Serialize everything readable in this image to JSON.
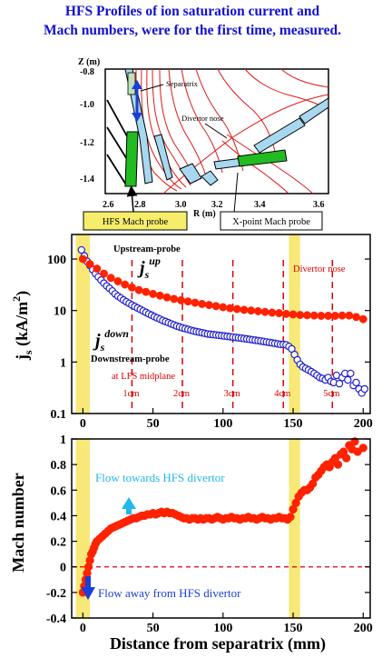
{
  "title_lines": [
    "HFS Profiles of ion saturation current and",
    "Mach numbers, were for the first time, measured."
  ],
  "colors": {
    "title": "#1010d0",
    "red": "#ff2200",
    "blue": "#2222cc",
    "yellow_band": "#f4e04a",
    "probe_green": "#22bb22",
    "wall_blue": "#a8d8f0",
    "arrow_cyan": "#22b8e8",
    "arrow_blue": "#1a3fd8",
    "divider_red": "#dd0000"
  },
  "diagram": {
    "z_axis_label": "Z (m)",
    "r_axis_label": "R (m)",
    "z_ticks": [
      "-0.8",
      "-1.0",
      "-1.2",
      "-1.4"
    ],
    "r_ticks": [
      "2.6",
      "2.8",
      "3.0",
      "3.2",
      "3.4",
      "3.6"
    ],
    "annotations": {
      "separatrix": "Separatrix",
      "divertor_nose": "Divertor nose",
      "hfs_probe": "HFS Mach probe",
      "xpoint_probe": "X-point Mach probe"
    }
  },
  "chart_data": [
    {
      "type": "scatter",
      "ylabel": "js (kA/m2)",
      "yscale": "log",
      "ylim": [
        0.1,
        300
      ],
      "xlim": [
        -8,
        205
      ],
      "y_ticks": [
        "100",
        "10",
        "1",
        "0.1"
      ],
      "x_ticks": [
        "0",
        "50",
        "100",
        "150",
        "200"
      ],
      "series": [
        {
          "name": "Upstream-probe js^up",
          "marker": "filled-red",
          "x": [
            0,
            5,
            10,
            15,
            20,
            25,
            30,
            35,
            40,
            45,
            50,
            55,
            60,
            65,
            70,
            75,
            80,
            85,
            90,
            95,
            100,
            105,
            110,
            115,
            120,
            125,
            130,
            135,
            140,
            145,
            150,
            155,
            160,
            165,
            170,
            175,
            180,
            185,
            190,
            195,
            200
          ],
          "y": [
            100,
            80,
            65,
            52,
            43,
            37,
            32,
            28,
            25,
            23,
            21,
            19.5,
            18,
            16.8,
            15.8,
            15,
            14.2,
            13.4,
            12.8,
            12.2,
            11.6,
            11.1,
            10.7,
            10.3,
            10,
            9.7,
            9.4,
            9.1,
            8.9,
            8.6,
            8.4,
            8.2,
            8.1,
            8.0,
            7.9,
            7.9,
            7.9,
            8.0,
            8.0,
            7.5,
            6.8
          ]
        },
        {
          "name": "Downstream-probe js^down",
          "marker": "open-blue",
          "x": [
            -1,
            1,
            3,
            5,
            7,
            9,
            11,
            13,
            15,
            17,
            19,
            21,
            23,
            25,
            27,
            29,
            31,
            33,
            35,
            37,
            39,
            41,
            43,
            45,
            47,
            49,
            51,
            53,
            55,
            57,
            59,
            61,
            63,
            65,
            67,
            69,
            71,
            73,
            75,
            77,
            79,
            81,
            83,
            85,
            87,
            89,
            91,
            93,
            95,
            97,
            99,
            101,
            103,
            105,
            107,
            109,
            111,
            113,
            115,
            117,
            119,
            121,
            123,
            125,
            127,
            129,
            131,
            133,
            135,
            137,
            139,
            141,
            143,
            145,
            147,
            149,
            151,
            153,
            155,
            157,
            159,
            161,
            163,
            165,
            167,
            169,
            171,
            173,
            175,
            177,
            179,
            181,
            183,
            185,
            187,
            189,
            191,
            193,
            195,
            197,
            199,
            201
          ],
          "y": [
            150,
            115,
            90,
            75,
            62,
            52,
            45,
            39,
            34,
            30,
            27,
            24,
            21,
            19,
            17.5,
            16,
            14.8,
            13.8,
            12.8,
            12,
            11.2,
            10.5,
            9.8,
            9.2,
            8.6,
            8.1,
            7.6,
            7.2,
            6.8,
            6.4,
            6.1,
            5.8,
            5.5,
            5.25,
            5.0,
            4.8,
            4.6,
            4.45,
            4.3,
            4.15,
            4.0,
            3.9,
            3.8,
            3.7,
            3.6,
            3.5,
            3.45,
            3.4,
            3.35,
            3.3,
            3.25,
            3.2,
            3.15,
            3.1,
            3.05,
            3.0,
            2.95,
            2.9,
            2.85,
            2.8,
            2.75,
            2.7,
            2.65,
            2.6,
            2.55,
            2.5,
            2.45,
            2.4,
            2.35,
            2.3,
            2.25,
            2.2,
            2.2,
            2.15,
            2.0,
            1.8,
            1.4,
            1.1,
            0.9,
            0.8,
            0.75,
            0.7,
            0.65,
            0.6,
            0.55,
            0.5,
            0.48,
            0.45,
            0.5,
            0.42,
            0.4,
            0.55,
            0.38,
            0.5,
            0.6,
            0.45,
            0.6,
            0.35,
            0.4,
            0.3,
            0.25,
            0.3
          ]
        }
      ],
      "annotations": {
        "upstream_label": "Upstream-probe",
        "downstream_label": "Downstream-probe",
        "divertor_nose": "Divertor nose",
        "lfs_midplane": "at LFS midplane",
        "distances": [
          "1cm",
          "2cm",
          "3cm",
          "4cm",
          "5cm"
        ],
        "js_up_sub": "s",
        "js_up_sup": "up",
        "js_down_sub": "s",
        "js_down_sup": "down"
      },
      "dashed_lines_x": [
        35,
        71,
        107,
        143,
        178
      ],
      "band_x": [
        [
          -5,
          5
        ],
        [
          147,
          155
        ]
      ]
    },
    {
      "type": "scatter",
      "ylabel": "Mach number",
      "xlabel": "Distance from separatrix (mm)",
      "ylim": [
        -0.4,
        1.0
      ],
      "xlim": [
        -8,
        205
      ],
      "y_ticks": [
        "1",
        "0.8",
        "0.6",
        "0.4",
        "0.2",
        "0",
        "-0.2",
        "-0.4"
      ],
      "x_ticks": [
        "0",
        "50",
        "100",
        "150",
        "200"
      ],
      "series": [
        {
          "name": "Mach number",
          "marker": "filled-red",
          "x": [
            0,
            1,
            2,
            3,
            4,
            5,
            6,
            7,
            8,
            9,
            10,
            12,
            14,
            16,
            18,
            20,
            22,
            24,
            26,
            28,
            30,
            32,
            34,
            36,
            38,
            40,
            42,
            44,
            46,
            48,
            50,
            52,
            54,
            56,
            58,
            60,
            62,
            64,
            66,
            68,
            70,
            72,
            74,
            76,
            78,
            80,
            82,
            84,
            86,
            88,
            90,
            92,
            94,
            96,
            98,
            100,
            102,
            104,
            106,
            108,
            110,
            112,
            114,
            116,
            118,
            120,
            122,
            124,
            126,
            128,
            130,
            132,
            134,
            136,
            138,
            140,
            142,
            144,
            146,
            148,
            150,
            152,
            154,
            156,
            158,
            160,
            162,
            164,
            166,
            168,
            170,
            172,
            174,
            176,
            178,
            180,
            182,
            184,
            186,
            188,
            190,
            192,
            194,
            196,
            200
          ],
          "y": [
            -0.2,
            -0.15,
            -0.1,
            -0.05,
            0.0,
            0.05,
            0.1,
            0.12,
            0.15,
            0.18,
            0.2,
            0.22,
            0.24,
            0.26,
            0.28,
            0.3,
            0.31,
            0.32,
            0.33,
            0.34,
            0.35,
            0.36,
            0.37,
            0.38,
            0.38,
            0.39,
            0.4,
            0.4,
            0.41,
            0.41,
            0.42,
            0.41,
            0.42,
            0.43,
            0.42,
            0.43,
            0.42,
            0.42,
            0.41,
            0.4,
            0.39,
            0.38,
            0.38,
            0.37,
            0.38,
            0.38,
            0.37,
            0.38,
            0.37,
            0.38,
            0.38,
            0.37,
            0.38,
            0.39,
            0.38,
            0.37,
            0.38,
            0.38,
            0.39,
            0.38,
            0.38,
            0.37,
            0.38,
            0.38,
            0.39,
            0.38,
            0.38,
            0.37,
            0.38,
            0.39,
            0.38,
            0.38,
            0.37,
            0.38,
            0.38,
            0.39,
            0.38,
            0.38,
            0.37,
            0.39,
            0.45,
            0.5,
            0.55,
            0.58,
            0.6,
            0.6,
            0.62,
            0.65,
            0.7,
            0.72,
            0.75,
            0.78,
            0.8,
            0.78,
            0.82,
            0.85,
            0.8,
            0.88,
            0.9,
            0.85,
            0.95,
            0.92,
            0.98,
            0.9,
            0.93
          ]
        }
      ],
      "annotations": {
        "flow_toward": "Flow towards HFS divertor",
        "flow_away": "Flow away from HFS divertor"
      },
      "zero_line": 0,
      "band_x": [
        [
          -5,
          5
        ],
        [
          147,
          155
        ]
      ]
    }
  ]
}
